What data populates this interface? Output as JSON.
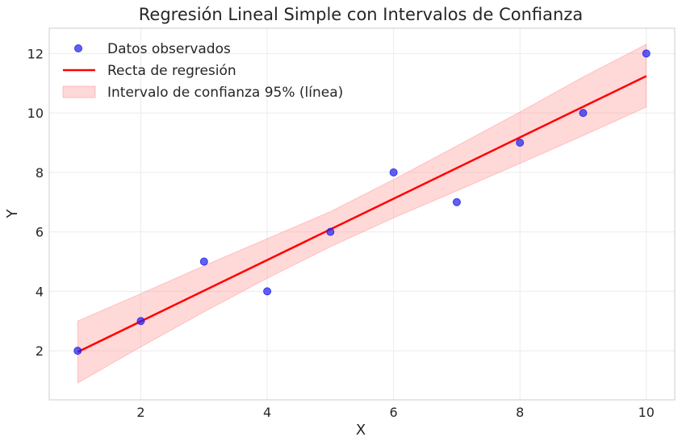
{
  "chart_data": {
    "type": "scatter",
    "title": "Regresión Lineal Simple con Intervalos de Confianza",
    "xlabel": "X",
    "ylabel": "Y",
    "xlim": [
      0.55,
      10.45
    ],
    "ylim": [
      0.35,
      12.85
    ],
    "xticks": [
      2,
      4,
      6,
      8,
      10
    ],
    "yticks": [
      2,
      4,
      6,
      8,
      10,
      12
    ],
    "grid": true,
    "legend_position": "top-left",
    "series": [
      {
        "name": "Datos observados",
        "kind": "scatter",
        "color": "#2222ee",
        "x": [
          1,
          2,
          3,
          4,
          5,
          6,
          7,
          8,
          9,
          10
        ],
        "y": [
          2,
          3,
          5,
          4,
          6,
          8,
          7,
          9,
          10,
          12
        ]
      },
      {
        "name": "Recta de regresión",
        "kind": "line",
        "color": "#ff0000",
        "x": [
          1,
          10
        ],
        "y": [
          1.96,
          11.24
        ]
      },
      {
        "name": "Intervalo de confianza 95% (línea)",
        "kind": "band",
        "color": "#ff9e9e",
        "x": [
          1,
          2,
          3,
          4,
          5,
          6,
          7,
          8,
          9,
          10
        ],
        "lower": [
          0.92,
          2.13,
          3.31,
          4.44,
          5.5,
          6.47,
          7.38,
          8.3,
          9.24,
          10.2
        ],
        "upper": [
          3.0,
          3.92,
          4.86,
          5.77,
          6.68,
          7.76,
          8.89,
          10.03,
          11.21,
          12.31
        ]
      }
    ]
  }
}
